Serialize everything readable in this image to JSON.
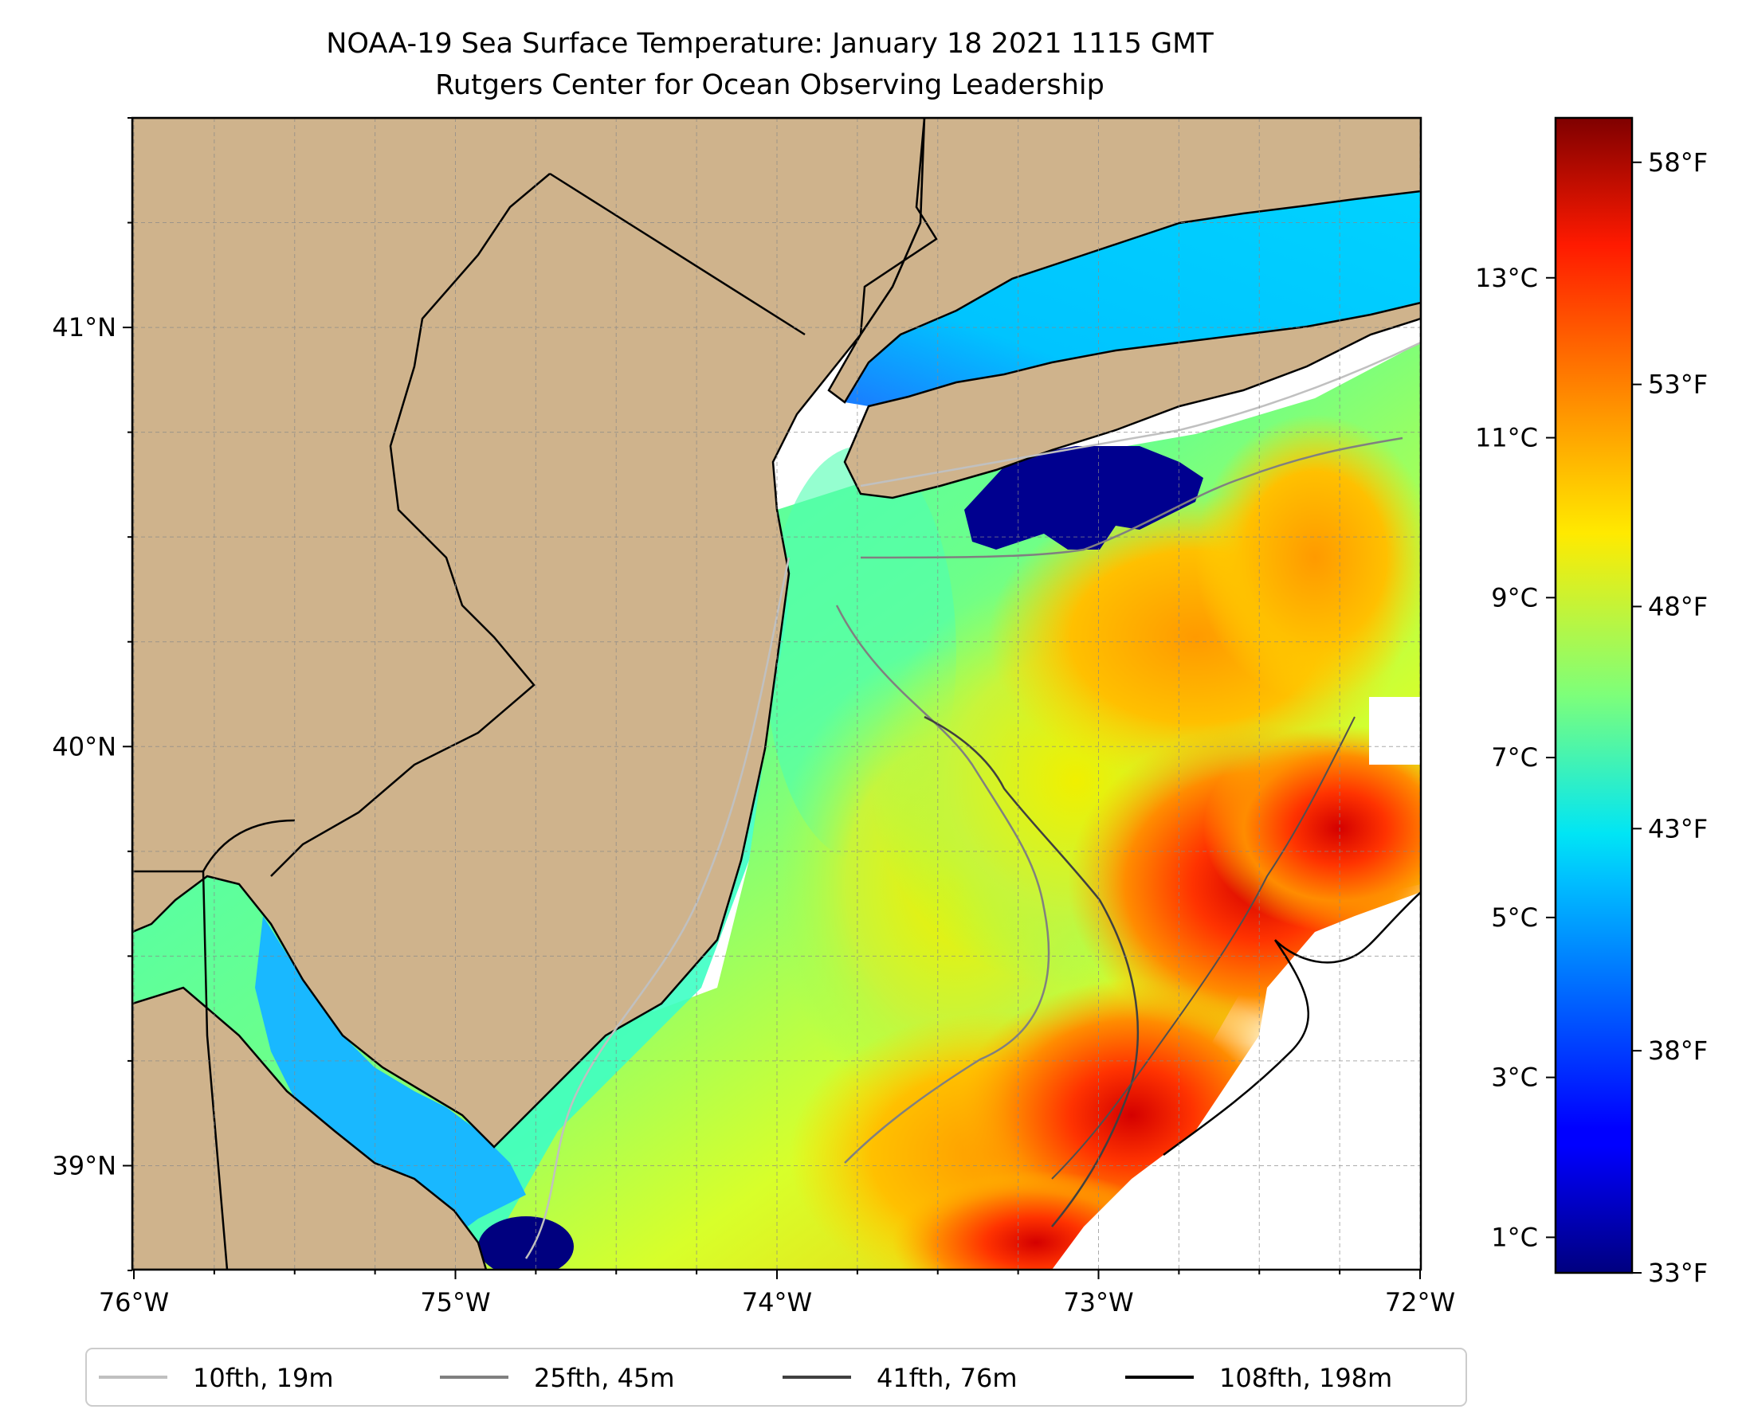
{
  "title": {
    "line1": "NOAA-19 Sea Surface Temperature: January 18 2021 1115 GMT",
    "line2": "Rutgers Center for Ocean Observing Leadership"
  },
  "map": {
    "lon_range": [
      -76,
      -72
    ],
    "lat_range": [
      38.75,
      41.5
    ],
    "lon_ticks": [
      {
        "value": -76,
        "label": "76°W"
      },
      {
        "value": -75,
        "label": "75°W"
      },
      {
        "value": -74,
        "label": "74°W"
      },
      {
        "value": -73,
        "label": "73°W"
      },
      {
        "value": -72,
        "label": "72°W"
      }
    ],
    "lat_ticks": [
      {
        "value": 39,
        "label": "39°N"
      },
      {
        "value": 40,
        "label": "40°N"
      },
      {
        "value": 41,
        "label": "41°N"
      }
    ],
    "grid": true,
    "land_color": "#cfb38c"
  },
  "colorbar": {
    "range_f": [
      33,
      59
    ],
    "f_ticks": [
      {
        "value": 33,
        "label": "33°F"
      },
      {
        "value": 38,
        "label": "38°F"
      },
      {
        "value": 43,
        "label": "43°F"
      },
      {
        "value": 48,
        "label": "48°F"
      },
      {
        "value": 53,
        "label": "53°F"
      },
      {
        "value": 58,
        "label": "58°F"
      }
    ],
    "c_ticks": [
      {
        "value": 1,
        "label": "1°C"
      },
      {
        "value": 3,
        "label": "3°C"
      },
      {
        "value": 5,
        "label": "5°C"
      },
      {
        "value": 7,
        "label": "7°C"
      },
      {
        "value": 9,
        "label": "9°C"
      },
      {
        "value": 11,
        "label": "11°C"
      },
      {
        "value": 13,
        "label": "13°C"
      }
    ],
    "colormap": "jet"
  },
  "legend": {
    "placement": "bottom-center",
    "items": [
      {
        "label": "10fth, 19m",
        "color": "#c0c0c0"
      },
      {
        "label": "25fth, 45m",
        "color": "#808080"
      },
      {
        "label": "41fth, 76m",
        "color": "#404040"
      },
      {
        "label": "108fth, 198m",
        "color": "#000000"
      }
    ]
  }
}
